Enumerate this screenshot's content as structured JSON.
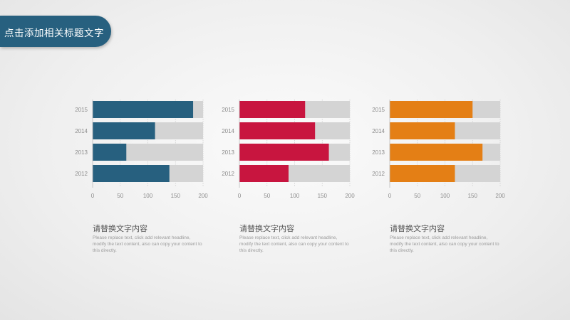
{
  "header": {
    "title": "点击添加相关标题文字"
  },
  "panels": [
    {
      "subtitle": "请替换文字内容",
      "description": "Please replace text, click add relevant headline, modify the text content, also can copy your content to this directly."
    },
    {
      "subtitle": "请替换文字内容",
      "description": "Please replace text, click add relevant headline, modify the text content, also can copy your content to this directly."
    },
    {
      "subtitle": "请替换文字内容",
      "description": "Please replace text, click add relevant headline, modify the text content, also can copy your content to this directly."
    }
  ],
  "chart_data": [
    {
      "type": "bar",
      "orientation": "horizontal",
      "categories": [
        "2015",
        "2014",
        "2013",
        "2012"
      ],
      "values": [
        182,
        113,
        61,
        139
      ],
      "xlim": [
        0,
        200
      ],
      "xticks": [
        0,
        50,
        100,
        150,
        200
      ],
      "color": "#27607f",
      "track_color": "#d4d4d4"
    },
    {
      "type": "bar",
      "orientation": "horizontal",
      "categories": [
        "2015",
        "2014",
        "2013",
        "2012"
      ],
      "values": [
        119,
        137,
        162,
        89
      ],
      "xlim": [
        0,
        200
      ],
      "xticks": [
        0,
        50,
        100,
        150,
        200
      ],
      "color": "#c8153f",
      "track_color": "#d4d4d4"
    },
    {
      "type": "bar",
      "orientation": "horizontal",
      "categories": [
        "2015",
        "2014",
        "2013",
        "2012"
      ],
      "values": [
        150,
        118,
        168,
        118
      ],
      "xlim": [
        0,
        200
      ],
      "xticks": [
        0,
        50,
        100,
        150,
        200
      ],
      "color": "#e47f15",
      "track_color": "#d4d4d4"
    }
  ]
}
